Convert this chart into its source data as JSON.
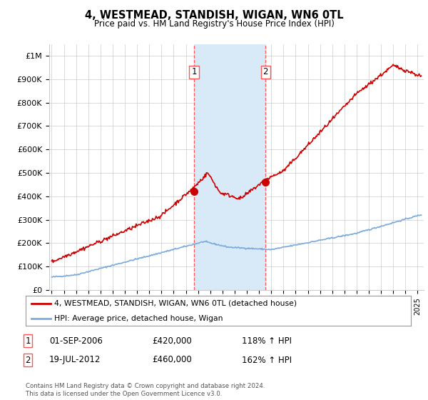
{
  "title": "4, WESTMEAD, STANDISH, WIGAN, WN6 0TL",
  "subtitle": "Price paid vs. HM Land Registry's House Price Index (HPI)",
  "ylabel_ticks": [
    "£0",
    "£100K",
    "£200K",
    "£300K",
    "£400K",
    "£500K",
    "£600K",
    "£700K",
    "£800K",
    "£900K",
    "£1M"
  ],
  "ytick_values": [
    0,
    100000,
    200000,
    300000,
    400000,
    500000,
    600000,
    700000,
    800000,
    900000,
    1000000
  ],
  "ylim": [
    0,
    1050000
  ],
  "xlim_start": 1994.8,
  "xlim_end": 2025.5,
  "sale1_x": 2006.67,
  "sale1_y": 420000,
  "sale2_x": 2012.54,
  "sale2_y": 460000,
  "sale1_date": "01-SEP-2006",
  "sale1_price": "£420,000",
  "sale1_hpi": "118% ↑ HPI",
  "sale2_date": "19-JUL-2012",
  "sale2_price": "£460,000",
  "sale2_hpi": "162% ↑ HPI",
  "legend1": "4, WESTMEAD, STANDISH, WIGAN, WN6 0TL (detached house)",
  "legend2": "HPI: Average price, detached house, Wigan",
  "footer": "Contains HM Land Registry data © Crown copyright and database right 2024.\nThis data is licensed under the Open Government Licence v3.0.",
  "hpi_color": "#7aabdc",
  "price_color": "#cc0000",
  "shade_color": "#d8eaf8",
  "vline_color": "#ff5555",
  "background_color": "#ffffff",
  "grid_color": "#cccccc"
}
